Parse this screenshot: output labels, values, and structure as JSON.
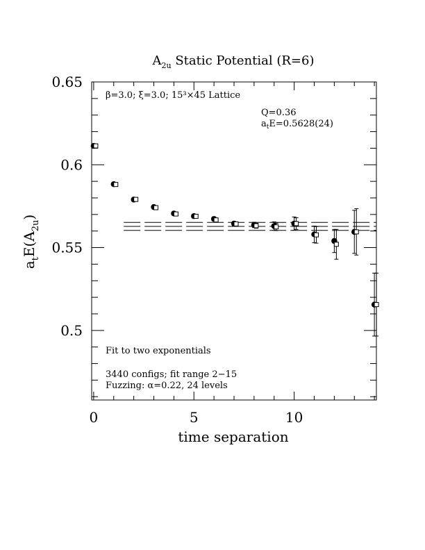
{
  "chart_data": {
    "type": "scatter",
    "title": "A2u Static Potential (R=6)",
    "title_main": "A",
    "title_sub": "2u",
    "title_rest": " Static Potential (R=6)",
    "xlabel": "time separation",
    "ylabel": "atE(A2u)",
    "ylabel_parts": {
      "a": "a",
      "a_sub": "t",
      "mid": "E(A",
      "mid_sub": "2u",
      "end": ")"
    },
    "xlim": [
      -0.1,
      14.1
    ],
    "ylim": [
      0.458,
      0.65
    ],
    "x_ticks": [
      0,
      5,
      10
    ],
    "y_ticks": [
      0.5,
      0.55,
      0.6,
      0.65
    ],
    "x_tick_labels": [
      "0",
      "5",
      "10"
    ],
    "y_tick_labels": [
      "0.5",
      "0.55",
      "0.6",
      "0.65"
    ],
    "annotations": {
      "lattice": "β=3.0; ξ=3.0; 15³×45 Lattice",
      "q": "Q=0.36",
      "fit_energy": "atE=0.5628(24)",
      "fit_energy_parts": {
        "a": "a",
        "sub": "t",
        "rest": "E=0.5628(24)"
      },
      "fit_type": "Fit to two exponentials",
      "configs": "3440 configs; fit range 2−15",
      "fuzzing": "Fuzzing: α=0.22, 24 levels"
    },
    "series": [
      {
        "marker": "filled-circle",
        "points": [
          {
            "x": 0,
            "y": 0.6114,
            "err": 0.0006
          },
          {
            "x": 1,
            "y": 0.5883,
            "err": 0.0006
          },
          {
            "x": 2,
            "y": 0.579,
            "err": 0.0006
          },
          {
            "x": 3,
            "y": 0.5745,
            "err": 0.0008
          },
          {
            "x": 4,
            "y": 0.5706,
            "err": 0.0009
          },
          {
            "x": 5,
            "y": 0.569,
            "err": 0.001
          },
          {
            "x": 6,
            "y": 0.5673,
            "err": 0.0012
          },
          {
            "x": 7,
            "y": 0.5645,
            "err": 0.0012
          },
          {
            "x": 8,
            "y": 0.5637,
            "err": 0.0016
          },
          {
            "x": 9,
            "y": 0.563,
            "err": 0.0025
          },
          {
            "x": 10,
            "y": 0.5645,
            "err": 0.004
          },
          {
            "x": 11,
            "y": 0.558,
            "err": 0.005
          },
          {
            "x": 12,
            "y": 0.554,
            "err": 0.007
          },
          {
            "x": 13,
            "y": 0.5595,
            "err": 0.013
          },
          {
            "x": 14,
            "y": 0.5156,
            "err": 0.019
          }
        ]
      },
      {
        "marker": "open-square",
        "points": [
          {
            "x": 0,
            "y": 0.6114,
            "err": 0.0005
          },
          {
            "x": 1,
            "y": 0.5881,
            "err": 0.0005
          },
          {
            "x": 2,
            "y": 0.5791,
            "err": 0.0005
          },
          {
            "x": 3,
            "y": 0.5741,
            "err": 0.0007
          },
          {
            "x": 4,
            "y": 0.5703,
            "err": 0.0008
          },
          {
            "x": 5,
            "y": 0.5689,
            "err": 0.0009
          },
          {
            "x": 6,
            "y": 0.5667,
            "err": 0.001
          },
          {
            "x": 7,
            "y": 0.5643,
            "err": 0.0011
          },
          {
            "x": 8,
            "y": 0.5632,
            "err": 0.0015
          },
          {
            "x": 9,
            "y": 0.5625,
            "err": 0.0022
          },
          {
            "x": 10,
            "y": 0.5645,
            "err": 0.0035
          },
          {
            "x": 11,
            "y": 0.5577,
            "err": 0.005
          },
          {
            "x": 12,
            "y": 0.552,
            "err": 0.009
          },
          {
            "x": 13,
            "y": 0.5595,
            "err": 0.014
          },
          {
            "x": 14,
            "y": 0.5156,
            "err": 0.019
          }
        ]
      }
    ],
    "fit_lines": {
      "x_start": 1.5,
      "x_end": 14.1,
      "central": 0.5628,
      "upper": 0.5652,
      "lower": 0.5604,
      "style": "long-dash"
    }
  }
}
